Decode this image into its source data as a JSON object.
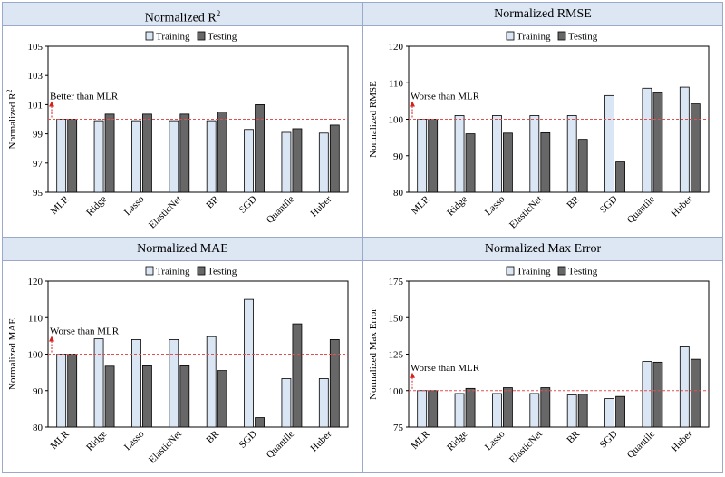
{
  "chart_data": [
    {
      "type": "bar",
      "title": "Normalized R",
      "title_superscript": "2",
      "ylabel": "Normalized R",
      "ylabel_superscript": "2",
      "ylim": [
        95,
        105
      ],
      "yticks": [
        95,
        97,
        99,
        101,
        103,
        105
      ],
      "reference_value": 100,
      "annotation": "Better than MLR",
      "legend_position": "top-center",
      "grid": false,
      "categories": [
        "MLR",
        "Ridge",
        "Lasso",
        "ElasticNet",
        "BR",
        "SGD",
        "Quantile",
        "Huber"
      ],
      "series": [
        {
          "name": "Training",
          "color": "#dae6f4",
          "values": [
            100.0,
            99.9,
            99.9,
            99.9,
            99.9,
            99.3,
            99.1,
            99.05
          ]
        },
        {
          "name": "Testing",
          "color": "#676767",
          "values": [
            100.0,
            100.35,
            100.35,
            100.35,
            100.5,
            101.0,
            99.35,
            99.6
          ]
        }
      ]
    },
    {
      "type": "bar",
      "title": "Normalized RMSE",
      "ylabel": "Normalized RMSE",
      "ylim": [
        80,
        120
      ],
      "yticks": [
        80,
        90,
        100,
        110,
        120
      ],
      "reference_value": 100,
      "annotation": "Worse than MLR",
      "legend_position": "top-center",
      "grid": false,
      "categories": [
        "MLR",
        "Ridge",
        "Lasso",
        "ElasticNet",
        "BR",
        "SGD",
        "Quantile",
        "Huber"
      ],
      "series": [
        {
          "name": "Training",
          "color": "#dae6f4",
          "values": [
            100.0,
            101.0,
            101.0,
            101.0,
            101.0,
            106.5,
            108.5,
            108.8
          ]
        },
        {
          "name": "Testing",
          "color": "#676767",
          "values": [
            100.0,
            96.0,
            96.2,
            96.3,
            94.5,
            88.3,
            107.2,
            104.2
          ]
        }
      ]
    },
    {
      "type": "bar",
      "title": "Normalized MAE",
      "ylabel": "Normalized MAE",
      "ylim": [
        80,
        120
      ],
      "yticks": [
        80,
        90,
        100,
        110,
        120
      ],
      "reference_value": 100,
      "annotation": "Worse than MLR",
      "legend_position": "top-center",
      "grid": false,
      "categories": [
        "MLR",
        "Ridge",
        "Lasso",
        "ElasticNet",
        "BR",
        "SGD",
        "Quantile",
        "Huber"
      ],
      "series": [
        {
          "name": "Training",
          "color": "#dae6f4",
          "values": [
            100.0,
            104.2,
            104.0,
            104.0,
            104.8,
            115.0,
            93.3,
            93.3
          ]
        },
        {
          "name": "Testing",
          "color": "#676767",
          "values": [
            100.0,
            96.7,
            96.8,
            96.8,
            95.5,
            82.6,
            108.3,
            104.0
          ]
        }
      ]
    },
    {
      "type": "bar",
      "title": "Normalized Max Error",
      "ylabel": "Normalized Max Error",
      "ylim": [
        75,
        175
      ],
      "yticks": [
        75,
        100,
        125,
        150,
        175
      ],
      "reference_value": 100,
      "annotation": "Worse than MLR",
      "legend_position": "top-center",
      "grid": false,
      "categories": [
        "MLR",
        "Ridge",
        "Lasso",
        "ElasticNet",
        "BR",
        "SGD",
        "Quantile",
        "Huber"
      ],
      "series": [
        {
          "name": "Training",
          "color": "#dae6f4",
          "values": [
            100.0,
            98.0,
            98.0,
            98.0,
            97.0,
            94.5,
            120.0,
            130.0
          ]
        },
        {
          "name": "Testing",
          "color": "#676767",
          "values": [
            100.0,
            101.5,
            102.0,
            102.0,
            97.5,
            96.0,
            119.5,
            121.5
          ]
        }
      ]
    }
  ]
}
